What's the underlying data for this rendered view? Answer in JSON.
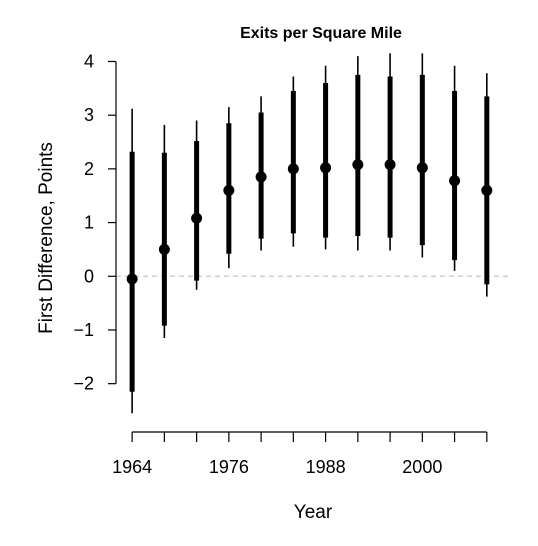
{
  "chart_data": {
    "type": "scatter",
    "title": "Exits per Square Mile",
    "xlabel": "Year",
    "ylabel": "First Difference, Points",
    "xlim": [
      1962,
      2011
    ],
    "ylim": [
      -2.9,
      4.4
    ],
    "x_tick_labels": [
      "1964",
      "1976",
      "1988",
      "2000"
    ],
    "y_tick_labels": [
      "4",
      "3",
      "2",
      "1",
      "0",
      "−1",
      "−2"
    ],
    "reference_line": 0,
    "grid": false,
    "points": [
      {
        "x": 1964,
        "y": -0.05,
        "ci_inner": [
          -2.15,
          2.32
        ],
        "ci_outer": [
          -2.55,
          3.12
        ]
      },
      {
        "x": 1968,
        "y": 0.5,
        "ci_inner": [
          -0.92,
          2.3
        ],
        "ci_outer": [
          -1.15,
          2.82
        ]
      },
      {
        "x": 1972,
        "y": 1.08,
        "ci_inner": [
          -0.08,
          2.52
        ],
        "ci_outer": [
          -0.25,
          2.9
        ]
      },
      {
        "x": 1976,
        "y": 1.6,
        "ci_inner": [
          0.42,
          2.85
        ],
        "ci_outer": [
          0.15,
          3.15
        ]
      },
      {
        "x": 1980,
        "y": 1.85,
        "ci_inner": [
          0.7,
          3.05
        ],
        "ci_outer": [
          0.48,
          3.35
        ]
      },
      {
        "x": 1984,
        "y": 2.0,
        "ci_inner": [
          0.8,
          3.45
        ],
        "ci_outer": [
          0.55,
          3.72
        ]
      },
      {
        "x": 1988,
        "y": 2.02,
        "ci_inner": [
          0.72,
          3.6
        ],
        "ci_outer": [
          0.5,
          3.92
        ]
      },
      {
        "x": 1992,
        "y": 2.08,
        "ci_inner": [
          0.75,
          3.75
        ],
        "ci_outer": [
          0.48,
          4.1
        ]
      },
      {
        "x": 1996,
        "y": 2.08,
        "ci_inner": [
          0.72,
          3.72
        ],
        "ci_outer": [
          0.48,
          4.15
        ]
      },
      {
        "x": 2000,
        "y": 2.02,
        "ci_inner": [
          0.58,
          3.75
        ],
        "ci_outer": [
          0.35,
          4.15
        ]
      },
      {
        "x": 2004,
        "y": 1.78,
        "ci_inner": [
          0.3,
          3.45
        ],
        "ci_outer": [
          0.1,
          3.92
        ]
      },
      {
        "x": 2008,
        "y": 1.6,
        "ci_inner": [
          -0.15,
          3.35
        ],
        "ci_outer": [
          -0.38,
          3.78
        ]
      }
    ]
  }
}
